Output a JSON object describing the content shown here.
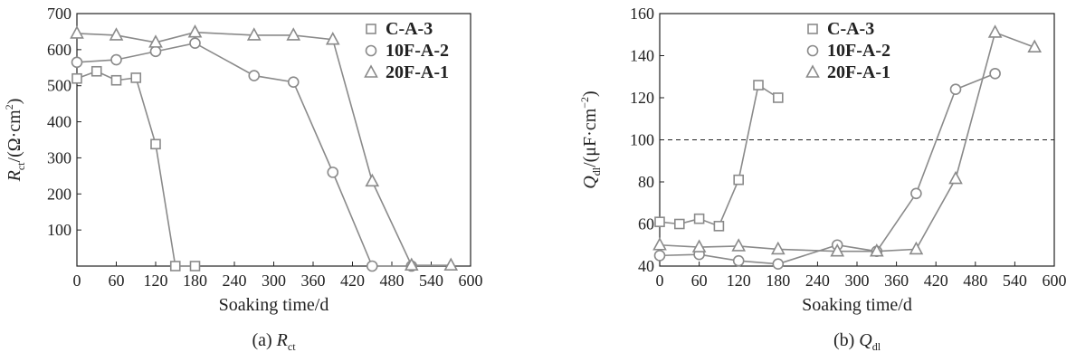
{
  "colors": {
    "series": "#8a8a8a",
    "frame": "#222222",
    "refline": "#222222"
  },
  "chart_data": [
    {
      "type": "line",
      "caption": "(a) R_ct",
      "caption_prefix": "(a) ",
      "caption_symbol": "R",
      "caption_subscript": "ct",
      "xlabel": "Soaking time/d",
      "ylabel_symbol": "R",
      "ylabel_subscript": "ct",
      "ylabel_unit": "/(Ω·cm",
      "ylabel_sup": "2",
      "ylabel_close": ")",
      "xlim": [
        0,
        600
      ],
      "ylim": [
        0,
        700
      ],
      "xticks": [
        0,
        60,
        120,
        180,
        240,
        300,
        360,
        420,
        480,
        540,
        600
      ],
      "yticks": [
        100,
        200,
        300,
        400,
        500,
        600,
        700
      ],
      "grid": false,
      "legend_position": "top-right",
      "series": [
        {
          "name": "C-A-3",
          "marker": "square",
          "x": [
            0,
            30,
            60,
            90,
            120,
            150,
            180
          ],
          "y": [
            520,
            540,
            515,
            522,
            338,
            0,
            0
          ]
        },
        {
          "name": "10F-A-2",
          "marker": "circle",
          "x": [
            0,
            60,
            120,
            180,
            270,
            330,
            390,
            450,
            510
          ],
          "y": [
            565,
            572,
            595,
            618,
            528,
            510,
            260,
            0,
            0
          ]
        },
        {
          "name": "20F-A-1",
          "marker": "triangle",
          "x": [
            0,
            60,
            120,
            180,
            270,
            330,
            390,
            450,
            510,
            570
          ],
          "y": [
            645,
            640,
            620,
            648,
            640,
            640,
            628,
            235,
            2,
            2
          ]
        }
      ]
    },
    {
      "type": "line",
      "caption": "(b) Q_dl",
      "caption_prefix": "(b) ",
      "caption_symbol": "Q",
      "caption_subscript": "dl",
      "xlabel": "Soaking time/d",
      "ylabel_symbol": "Q",
      "ylabel_subscript": "dl",
      "ylabel_unit": "/(μF·cm",
      "ylabel_sup": "−2",
      "ylabel_close": ")",
      "xlim": [
        0,
        600
      ],
      "ylim": [
        40,
        160
      ],
      "xticks": [
        0,
        60,
        120,
        180,
        240,
        300,
        360,
        420,
        480,
        540,
        600
      ],
      "yticks": [
        40,
        60,
        80,
        100,
        120,
        140,
        160
      ],
      "grid": false,
      "legend_position": "top-center",
      "reference_line_y": 100,
      "series": [
        {
          "name": "C-A-3",
          "marker": "square",
          "x": [
            0,
            30,
            60,
            90,
            120,
            150,
            180
          ],
          "y": [
            61,
            60,
            62.5,
            59,
            81,
            126,
            120
          ]
        },
        {
          "name": "10F-A-2",
          "marker": "circle",
          "x": [
            0,
            60,
            120,
            180,
            270,
            330,
            390,
            450,
            510
          ],
          "y": [
            45,
            45.5,
            42.5,
            41,
            50,
            47,
            74.5,
            124,
            131.5
          ]
        },
        {
          "name": "20F-A-1",
          "marker": "triangle",
          "x": [
            0,
            60,
            120,
            180,
            270,
            330,
            390,
            450,
            510,
            570
          ],
          "y": [
            50,
            49,
            49.5,
            48,
            47,
            47,
            48,
            81.5,
            151,
            144
          ]
        }
      ]
    }
  ]
}
